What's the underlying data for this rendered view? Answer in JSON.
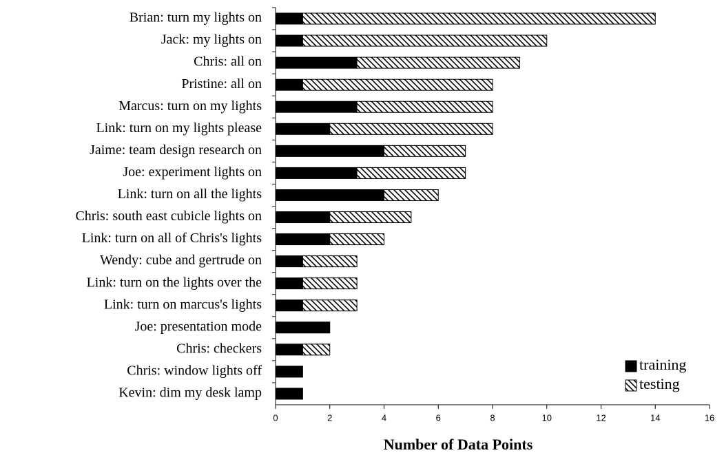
{
  "chart_data": {
    "type": "stacked-horizontal-bar",
    "x_label": "Number of Data Points",
    "categories": [
      "Brian: turn my lights on",
      "Jack: my lights on",
      "Chris: all on",
      "Pristine: all on",
      "Marcus: turn on my lights",
      "Link: turn on my lights please",
      "Jaime: team design research on",
      "Joe: experiment lights on",
      "Link: turn on all the lights",
      "Chris: south east cubicle lights on",
      "Link: turn on all of Chris's lights",
      "Wendy: cube and gertrude on",
      "Link: turn on the lights over the",
      "Link: turn on marcus's lights",
      "Joe: presentation mode",
      "Chris: checkers",
      "Chris: window lights off",
      "Kevin: dim my desk lamp"
    ],
    "series": [
      {
        "name": "training",
        "color": "#000000",
        "pattern": "solid",
        "values": [
          1,
          1,
          3,
          1,
          3,
          2,
          4,
          3,
          4,
          2,
          2,
          1,
          1,
          1,
          2,
          1,
          1,
          1
        ]
      },
      {
        "name": "testing",
        "color": "#000000",
        "pattern": "diagonal-hatch",
        "values": [
          13,
          9,
          6,
          7,
          5,
          6,
          3,
          4,
          2,
          3,
          2,
          2,
          2,
          2,
          0,
          1,
          0,
          0
        ]
      }
    ],
    "xlim": [
      0,
      16
    ],
    "xticks": [
      0,
      2,
      4,
      6,
      8,
      10,
      12,
      14,
      16
    ],
    "legend": "bottom-right"
  }
}
